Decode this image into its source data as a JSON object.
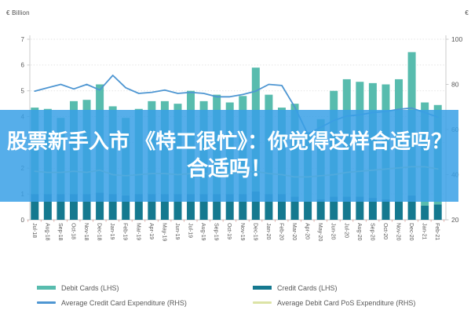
{
  "overlay": {
    "lines": [
      "股票新手入市 《特工很忙》：你觉得这样合适吗？",
      "合适吗！"
    ],
    "band_color": "#38a0e6",
    "band_opacity": 0.85,
    "text_color": "#ffffff"
  },
  "chart_data": {
    "type": "bar",
    "subtype": "stacked-bars-with-lines-combo",
    "categories": [
      "Jul-18",
      "Aug-18",
      "Sep-18",
      "Oct-18",
      "Nov-18",
      "Dec-18",
      "Jan-19",
      "Feb-19",
      "Mar-19",
      "Apr-19",
      "May-19",
      "Jun-19",
      "Jul-19",
      "Aug-19",
      "Sep-19",
      "Oct-19",
      "Nov-19",
      "Dec-19",
      "Jan-20",
      "Feb-20",
      "Mar-20",
      "Apr-20",
      "May-20",
      "Jun-20",
      "Jul-20",
      "Aug-20",
      "Sep-20",
      "Oct-20",
      "Nov-20",
      "Dec-20",
      "Jan-21",
      "Feb-21"
    ],
    "series": [
      {
        "name": "Debit Cards (LHS)",
        "type": "bar",
        "stack": "cards",
        "stack_position": "top",
        "axis": "left",
        "color": "#58bcae",
        "values": [
          3.35,
          3.3,
          2.95,
          3.6,
          3.65,
          4.2,
          3.4,
          3.0,
          3.3,
          3.6,
          3.6,
          3.5,
          4.0,
          3.6,
          3.85,
          3.55,
          3.8,
          4.8,
          3.85,
          3.35,
          3.6,
          2.7,
          3.1,
          4.1,
          4.55,
          4.45,
          4.45,
          4.45,
          4.75,
          5.55,
          4.0,
          3.85
        ]
      },
      {
        "name": "Credit Cards (LHS)",
        "type": "bar",
        "stack": "cards",
        "stack_position": "bottom",
        "axis": "left",
        "color": "#15798f",
        "values": [
          1.0,
          1.0,
          1.0,
          1.0,
          1.0,
          1.05,
          1.0,
          0.95,
          1.0,
          1.0,
          1.0,
          1.0,
          1.0,
          1.0,
          1.0,
          1.0,
          1.0,
          1.1,
          1.0,
          1.0,
          0.9,
          0.7,
          0.8,
          0.9,
          0.9,
          0.9,
          0.85,
          0.8,
          0.7,
          0.95,
          0.55,
          0.6
        ]
      },
      {
        "name": "Average Credit Card Expenditure (RHS)",
        "type": "line",
        "axis": "right",
        "color": "#4e96d2",
        "values": [
          77,
          78.5,
          80,
          78,
          80,
          77.5,
          84,
          78.5,
          76,
          76.5,
          77.5,
          76,
          76.5,
          76,
          74.5,
          74.5,
          75.5,
          77,
          80,
          79.5,
          70,
          58,
          61,
          64,
          66,
          66.5,
          67.5,
          68,
          69,
          69.5,
          67.5,
          65.5
        ]
      },
      {
        "name": "Average Debit Card PoS Expenditure (RHS)",
        "type": "line",
        "axis": "right",
        "color": "#dce3a6",
        "values": [
          41.5,
          41,
          41,
          41.5,
          41,
          42,
          40,
          39.5,
          40,
          40.5,
          40.5,
          40,
          40.5,
          40.5,
          40,
          40.5,
          41,
          41.5,
          40.5,
          40,
          39,
          39,
          39.5,
          40,
          41,
          41.5,
          42,
          42.5,
          43,
          43.5,
          43.5,
          42.5
        ]
      }
    ],
    "left_axis": {
      "label": "€ Billion",
      "min": 0,
      "max": 7,
      "ticks": [
        0,
        1,
        2,
        3,
        4,
        5,
        6,
        7
      ]
    },
    "right_axis": {
      "label": "€",
      "min": 20,
      "max": 100,
      "ticks": [
        20,
        40,
        60,
        80,
        100
      ]
    },
    "grid": {
      "show": true,
      "style": "dotted",
      "color": "#d9d9d9"
    },
    "axis_color": "#c6c6c6",
    "x_tick_color": "#d89c94",
    "tick_label_color": "#595959",
    "legend_position": "bottom"
  }
}
